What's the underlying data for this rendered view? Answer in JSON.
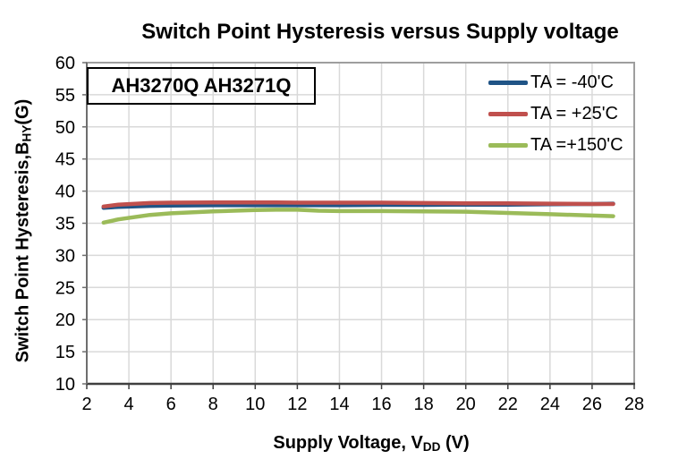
{
  "part_label": "AH3270Q AH3271Q",
  "axes": {
    "y_prefix": "Switch Point Hysteresis,B",
    "y_sub": "HY",
    "y_suffix": "(G)",
    "x_prefix": "Supply Voltage, V",
    "x_sub": "DD",
    "x_suffix": " (V)"
  },
  "colors": {
    "series_blue": "#205486",
    "series_red": "#C0504D",
    "series_green": "#9BBB59",
    "grid": "#D9D9D9",
    "border": "#9E9E9E",
    "axis": "#3F3F3F",
    "axis_left": "#6E6E6E",
    "text": "#000000",
    "background": "#FFFFFF"
  },
  "chart_data": {
    "type": "line",
    "title": "Switch Point Hysteresis versus Supply voltage",
    "xlabel": "Supply Voltage, VDD (V)",
    "ylabel": "Switch Point Hysteresis, BHY (G)",
    "xlim": [
      2,
      28
    ],
    "ylim": [
      10,
      60
    ],
    "x_ticks": [
      2,
      4,
      6,
      8,
      10,
      12,
      14,
      16,
      18,
      20,
      22,
      24,
      26,
      28
    ],
    "y_ticks": [
      10,
      15,
      20,
      25,
      30,
      35,
      40,
      45,
      50,
      55,
      60
    ],
    "grid": true,
    "legend_position": "top-right",
    "x": [
      2.8,
      3.5,
      5,
      6,
      8,
      10,
      11,
      12,
      13,
      14,
      16,
      18,
      20,
      22,
      24,
      26,
      27
    ],
    "series": [
      {
        "name": "TA = -40'C",
        "color": "#205486",
        "values": [
          37.4,
          37.55,
          37.7,
          37.75,
          37.8,
          37.8,
          37.8,
          37.8,
          37.8,
          37.8,
          37.85,
          37.85,
          37.9,
          37.9,
          37.95,
          38.0,
          38.05
        ]
      },
      {
        "name": "TA = +25'C",
        "color": "#C0504D",
        "values": [
          37.6,
          37.9,
          38.15,
          38.2,
          38.25,
          38.25,
          38.25,
          38.2,
          38.2,
          38.2,
          38.2,
          38.15,
          38.1,
          38.1,
          38.05,
          38.0,
          38.0
        ]
      },
      {
        "name": "TA =+150'C",
        "color": "#9BBB59",
        "values": [
          35.1,
          35.6,
          36.3,
          36.55,
          36.85,
          37.05,
          37.1,
          37.1,
          36.95,
          36.9,
          36.9,
          36.85,
          36.8,
          36.6,
          36.4,
          36.2,
          36.1
        ]
      }
    ]
  }
}
